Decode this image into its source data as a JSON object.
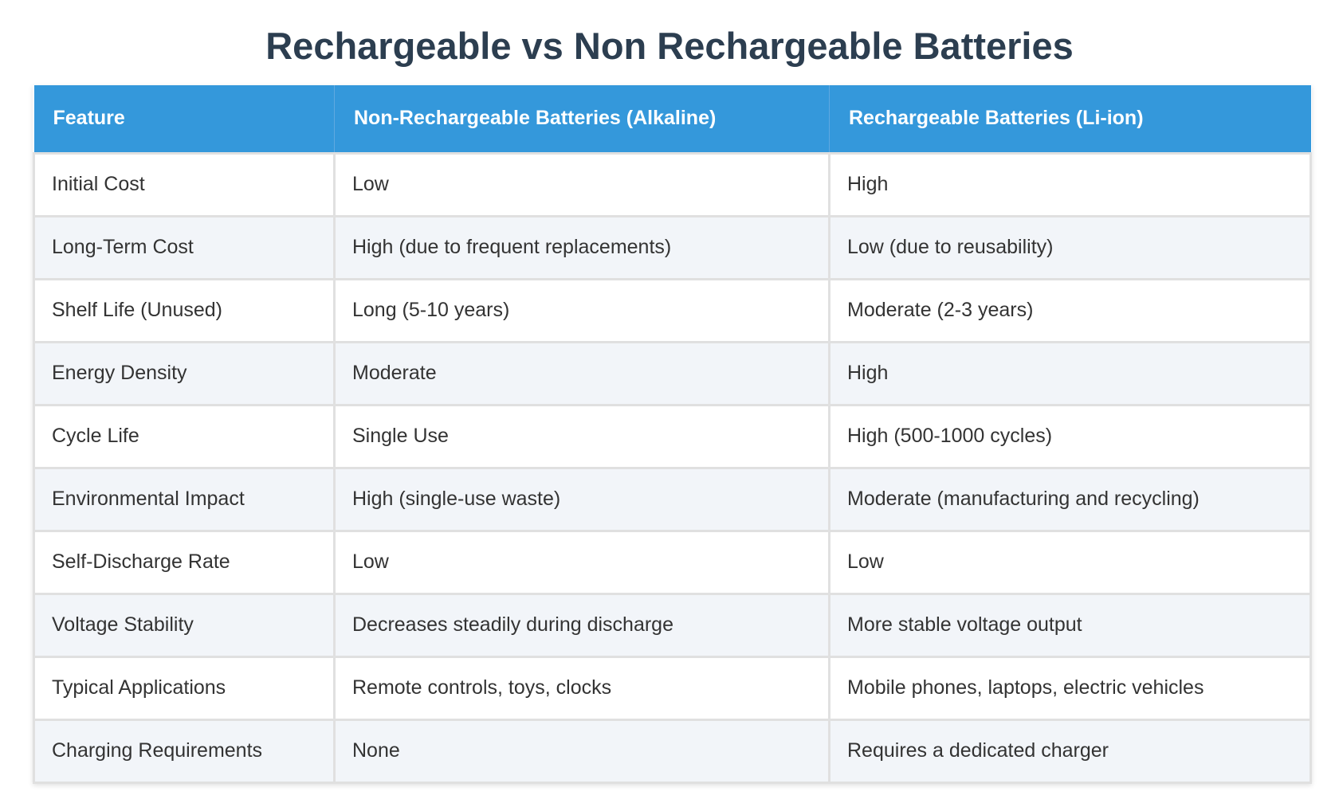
{
  "title": "Rechargeable vs Non Rechargeable Batteries",
  "table": {
    "headers": [
      "Feature",
      "Non-Rechargeable Batteries (Alkaline)",
      "Rechargeable Batteries (Li-ion)"
    ],
    "rows": [
      [
        "Initial Cost",
        "Low",
        "High"
      ],
      [
        "Long-Term Cost",
        "High (due to frequent replacements)",
        "Low (due to reusability)"
      ],
      [
        "Shelf Life (Unused)",
        "Long (5-10 years)",
        "Moderate (2-3 years)"
      ],
      [
        "Energy Density",
        "Moderate",
        "High"
      ],
      [
        "Cycle Life",
        "Single Use",
        "High (500-1000 cycles)"
      ],
      [
        "Environmental Impact",
        "High (single-use waste)",
        "Moderate (manufacturing and recycling)"
      ],
      [
        "Self-Discharge Rate",
        "Low",
        "Low"
      ],
      [
        "Voltage Stability",
        "Decreases steadily during discharge",
        "More stable voltage output"
      ],
      [
        "Typical Applications",
        "Remote controls, toys, clocks",
        "Mobile phones, laptops, electric vehicles"
      ],
      [
        "Charging Requirements",
        "None",
        "Requires a dedicated charger"
      ]
    ]
  },
  "colors": {
    "title": "#2c3e50",
    "header_bg": "#3498db",
    "header_text": "#ffffff",
    "row_alt_bg": "#f2f5f9",
    "border": "#e0e0e0"
  }
}
